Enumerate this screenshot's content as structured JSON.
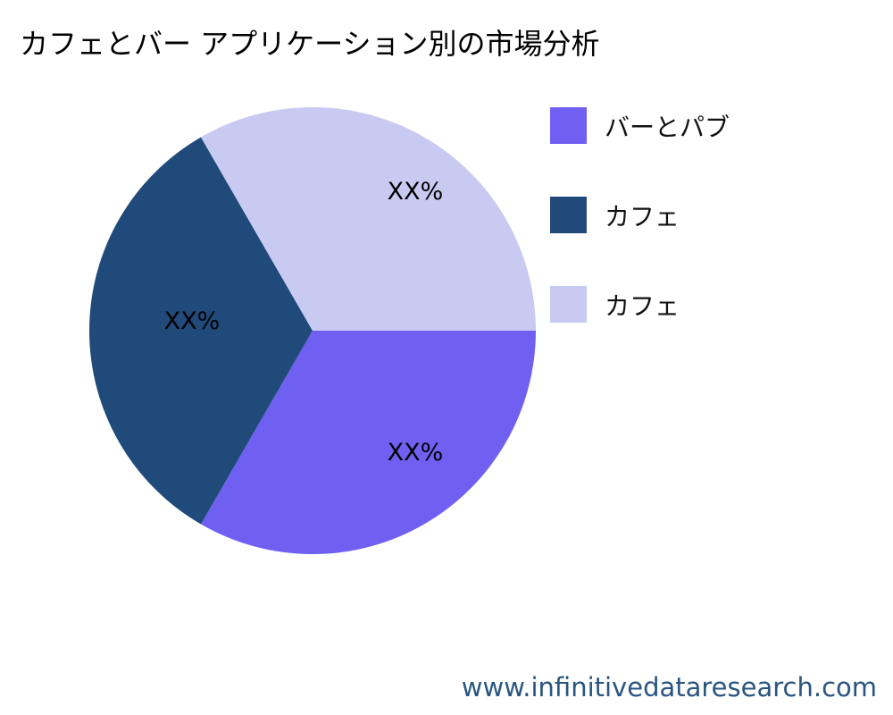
{
  "chart_data": {
    "type": "pie",
    "title": "カフェとバー アプリケーション別の市場分析",
    "slices": [
      {
        "name": "バーとパブ",
        "value": 33.33,
        "label": "XX%",
        "color": "#7060F2"
      },
      {
        "name": "カフェ",
        "value": 33.33,
        "label": "XX%",
        "color": "#1F4A7A"
      },
      {
        "name": "カフェ",
        "value": 33.33,
        "label": "XX%",
        "color": "#C9CAF2"
      }
    ],
    "start": "3 o'clock",
    "direction": "clockwise",
    "legend_placement": "right"
  },
  "watermark": "www.infinitivedataresearch.com"
}
